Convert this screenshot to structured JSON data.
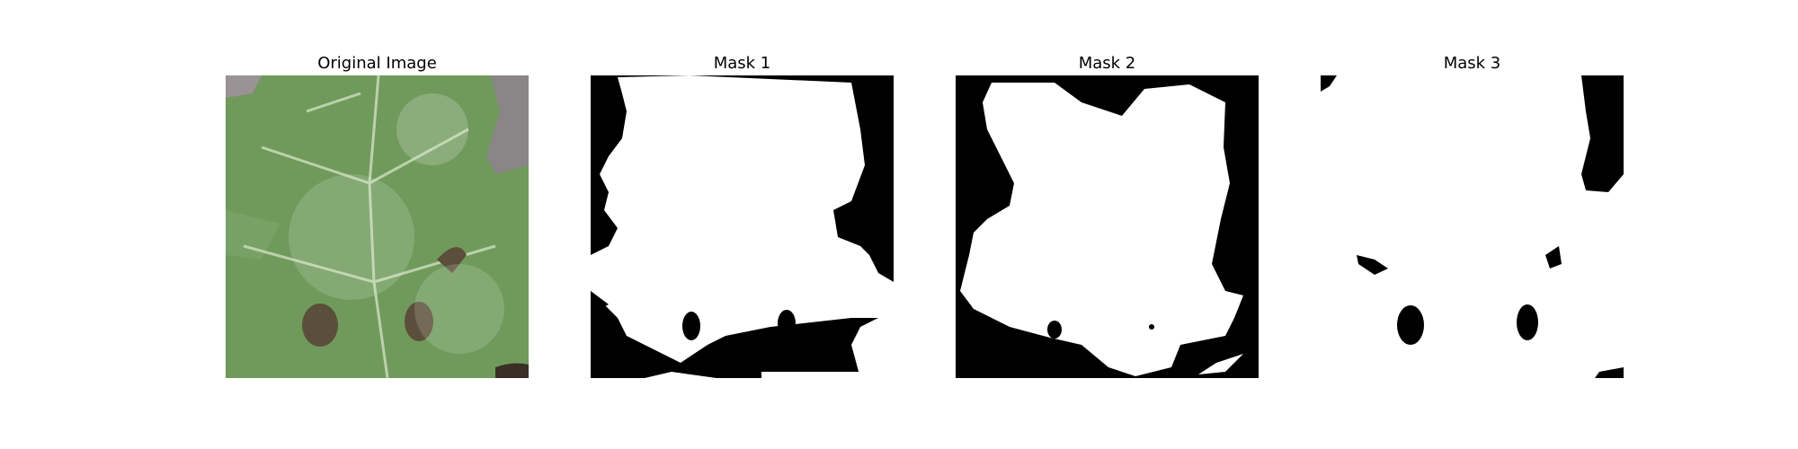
{
  "figure": {
    "panels": [
      {
        "title": "Original Image",
        "kind": "photo",
        "subject": "green leaf with white powdery coating, two holes"
      },
      {
        "title": "Mask 1",
        "kind": "binary-mask"
      },
      {
        "title": "Mask 2",
        "kind": "binary-mask"
      },
      {
        "title": "Mask 3",
        "kind": "binary-mask"
      }
    ],
    "colors": {
      "background": "#ffffff",
      "mask_fg": "#ffffff",
      "mask_bg": "#000000",
      "leaf": "#6f9a5c",
      "vein": "#c9dcb9",
      "backdrop": "#8a8586"
    }
  }
}
